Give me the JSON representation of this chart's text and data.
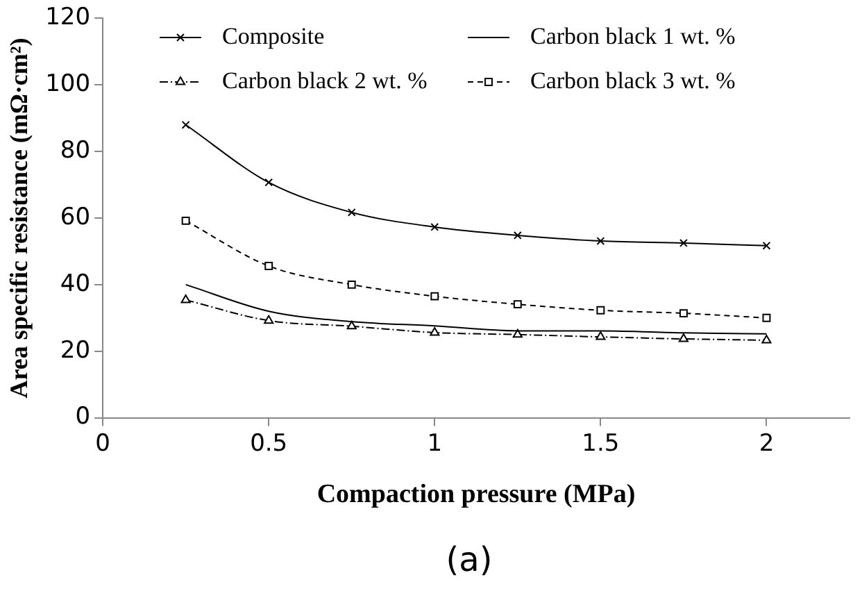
{
  "chart_data": {
    "type": "line",
    "xlabel": "Compaction pressure (MPa)",
    "ylabel": "Area specific resistance (mΩ·cm²)",
    "annotations": [
      "(a)"
    ],
    "x": [
      0.25,
      0.5,
      0.75,
      1,
      1.25,
      1.5,
      1.75,
      2
    ],
    "xlim": [
      0,
      2.25
    ],
    "xticks": [
      0,
      0.5,
      1,
      1.5,
      2
    ],
    "ylim": [
      0,
      120
    ],
    "yticks": [
      0,
      20,
      40,
      60,
      80,
      100,
      120
    ],
    "grid": false,
    "legend": "top",
    "series": [
      {
        "name": "Composite",
        "color": "#000000",
        "marker": "cross",
        "line_style": "solid",
        "values": [
          88,
          70.7,
          61.7,
          57.3,
          54.8,
          53.1,
          52.5,
          51.7
        ]
      },
      {
        "name": "Carbon black 1 wt. %",
        "color": "#000000",
        "marker": "none",
        "line_style": "solid",
        "values": [
          40,
          32,
          28.9,
          27.6,
          26.1,
          26.1,
          25.5,
          25.2
        ]
      },
      {
        "name": "Carbon black 2 wt. %",
        "color": "#000000",
        "marker": "triangle",
        "line_style": "dashdot",
        "values": [
          35.4,
          29.2,
          27.5,
          25.6,
          25,
          24.3,
          23.7,
          23.3
        ]
      },
      {
        "name": "Carbon black 3 wt. %",
        "color": "#000000",
        "marker": "square",
        "line_style": "dashed",
        "values": [
          59.2,
          45.6,
          40,
          36.5,
          34.1,
          32.3,
          31.4,
          30
        ]
      }
    ]
  }
}
